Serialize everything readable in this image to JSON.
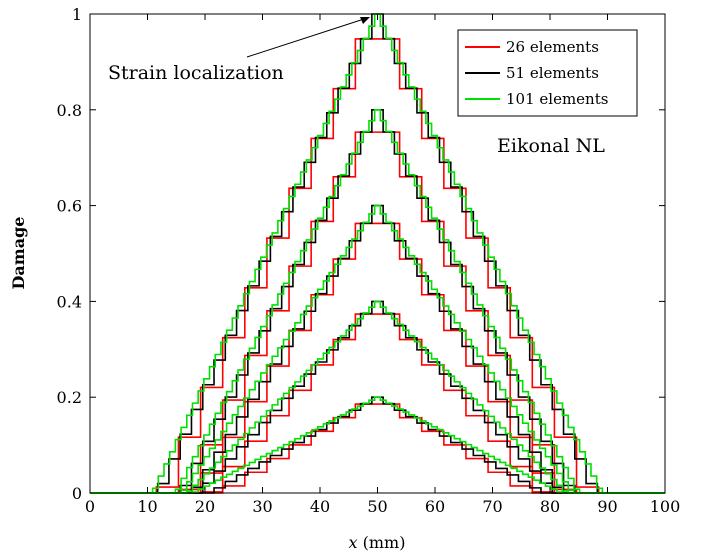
{
  "chart_data": {
    "type": "line",
    "title": "",
    "xlabel": {
      "var": "x",
      "unit": " (mm)"
    },
    "ylabel": "Damage",
    "xlim": [
      0,
      100
    ],
    "ylim": [
      0,
      1
    ],
    "xticks": [
      "0",
      "10",
      "20",
      "30",
      "40",
      "50",
      "60",
      "70",
      "80",
      "90",
      "100"
    ],
    "yticks": [
      "0",
      "0.2",
      "0.4",
      "0.6",
      "0.8",
      "1"
    ],
    "grid": false,
    "legend_position": "top-right",
    "annotations": {
      "localization": "Strain localization",
      "model": "Eikonal NL"
    },
    "load_levels_peak_damage": [
      0.2,
      0.4,
      0.6,
      0.8,
      1.0
    ],
    "series": [
      {
        "name": "26 elements",
        "elements": 26,
        "color": "#ff0000",
        "half_width_mm": [
          27,
          29,
          31,
          33,
          37
        ]
      },
      {
        "name": "51 elements",
        "elements": 51,
        "color": "#000000",
        "half_width_mm": [
          29,
          31,
          32,
          34,
          38
        ]
      },
      {
        "name": "101 elements",
        "elements": 101,
        "color": "#00e000",
        "half_width_mm": [
          32,
          33,
          34,
          35,
          39
        ]
      }
    ]
  }
}
